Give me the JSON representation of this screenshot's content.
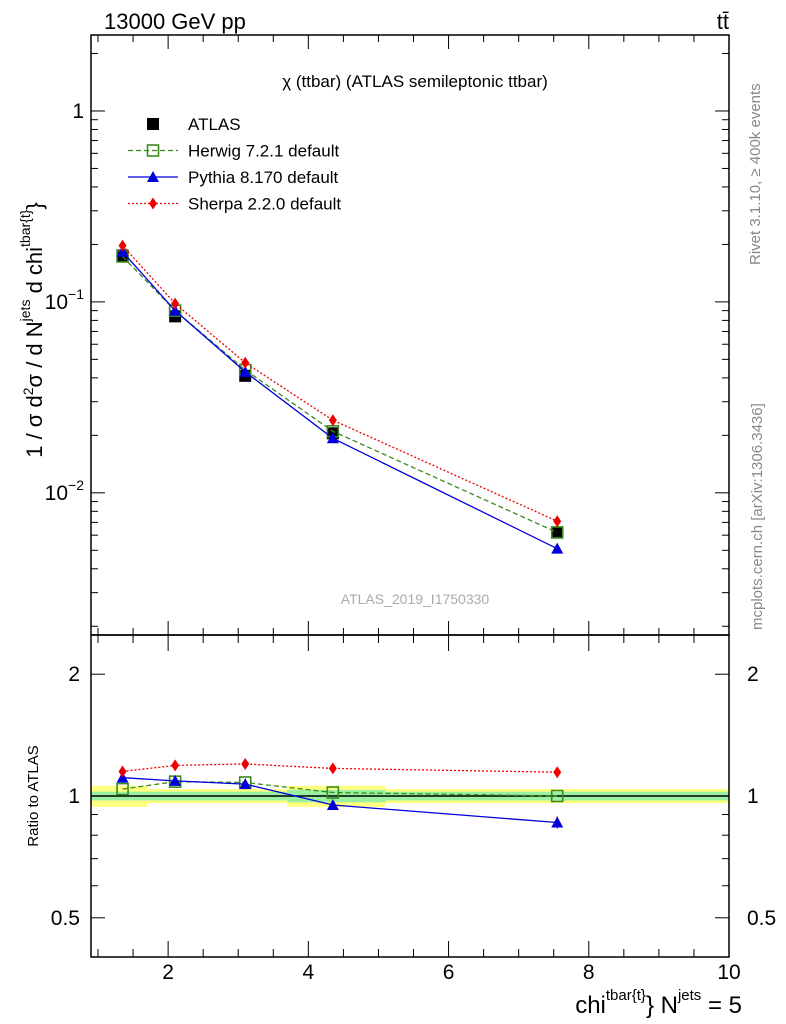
{
  "header": {
    "left": "13000 GeV pp",
    "right": "tt̄"
  },
  "side_labels": {
    "rivet": "Rivet 3.1.10, ≥ 400k events",
    "mcplots": "mcplots.cern.ch [arXiv:1306.3436]"
  },
  "chart_data": [
    {
      "type": "line",
      "title": "χ (ttbar) (ATLAS semileptonic ttbar)",
      "watermark": "ATLAS_2019_I1750330",
      "ylabel": "1 / σ d²σ / d N^jets d chi^tbar{t}",
      "yscale": "log",
      "ylim": [
        0.0018,
        2.5
      ],
      "xlim": [
        0.9,
        10
      ],
      "y_ticks": [
        {
          "value": 1,
          "base": "1",
          "exp": ""
        },
        {
          "value": 0.1,
          "base": "10",
          "exp": "−1"
        },
        {
          "value": 0.01,
          "base": "10",
          "exp": "−2"
        }
      ],
      "legend": {
        "position": "top-left"
      },
      "series": [
        {
          "name": "ATLAS",
          "style": "square-filled",
          "color": "#000000",
          "x": [
            1.35,
            2.1,
            3.1,
            4.35,
            7.55
          ],
          "y": [
            0.175,
            0.084,
            0.041,
            0.0205,
            0.0062
          ]
        },
        {
          "name": "Herwig 7.2.1 default",
          "style": "square-open-dashed",
          "color": "#3a8a1e",
          "x": [
            1.35,
            2.1,
            3.1,
            4.35,
            7.55
          ],
          "y": [
            0.173,
            0.09,
            0.044,
            0.021,
            0.0062
          ]
        },
        {
          "name": "Pythia 8.170 default",
          "style": "triangle-solid",
          "color": "#0000dd",
          "x": [
            1.35,
            2.1,
            3.1,
            4.35,
            7.55
          ],
          "y": [
            0.183,
            0.09,
            0.043,
            0.0193,
            0.0051
          ]
        },
        {
          "name": "Sherpa 2.2.0 default",
          "style": "diamond-dotted",
          "color": "#ee0000",
          "x": [
            1.35,
            2.1,
            3.1,
            4.35,
            7.55
          ],
          "y": [
            0.197,
            0.098,
            0.048,
            0.024,
            0.0071
          ]
        }
      ]
    },
    {
      "type": "line",
      "ylabel": "Ratio to ATLAS",
      "xlabel": "chi^tbar{t} N^jets = 5",
      "yscale": "log",
      "ylim": [
        0.4,
        2.5
      ],
      "xlim": [
        0.9,
        10
      ],
      "x_ticks": [
        "2",
        "4",
        "6",
        "8",
        "10"
      ],
      "y_ticks": [
        "0.5",
        "1",
        "2"
      ],
      "bins": [
        {
          "x": [
            0.9,
            1.7
          ],
          "stat": 0.025,
          "total": 0.06
        },
        {
          "x": [
            1.7,
            3.7
          ],
          "stat": 0.025,
          "total": 0.04
        },
        {
          "x": [
            3.7,
            5.1
          ],
          "stat": 0.035,
          "total": 0.06
        },
        {
          "x": [
            5.1,
            10.0
          ],
          "stat": 0.025,
          "total": 0.04
        }
      ],
      "series": [
        {
          "name": "Herwig 7.2.1 default",
          "color": "#3a8a1e",
          "x": [
            1.35,
            2.1,
            3.1,
            4.35,
            7.55
          ],
          "y": [
            1.04,
            1.085,
            1.08,
            1.02,
            1.0
          ]
        },
        {
          "name": "Pythia 8.170 default",
          "color": "#0000dd",
          "x": [
            1.35,
            2.1,
            3.1,
            4.35,
            7.55
          ],
          "y": [
            1.11,
            1.09,
            1.07,
            0.95,
            0.86
          ]
        },
        {
          "name": "Sherpa 2.2.0 default",
          "color": "#ee0000",
          "x": [
            1.35,
            2.1,
            3.1,
            4.35,
            7.55
          ],
          "y": [
            1.15,
            1.19,
            1.2,
            1.17,
            1.145
          ]
        }
      ]
    }
  ]
}
